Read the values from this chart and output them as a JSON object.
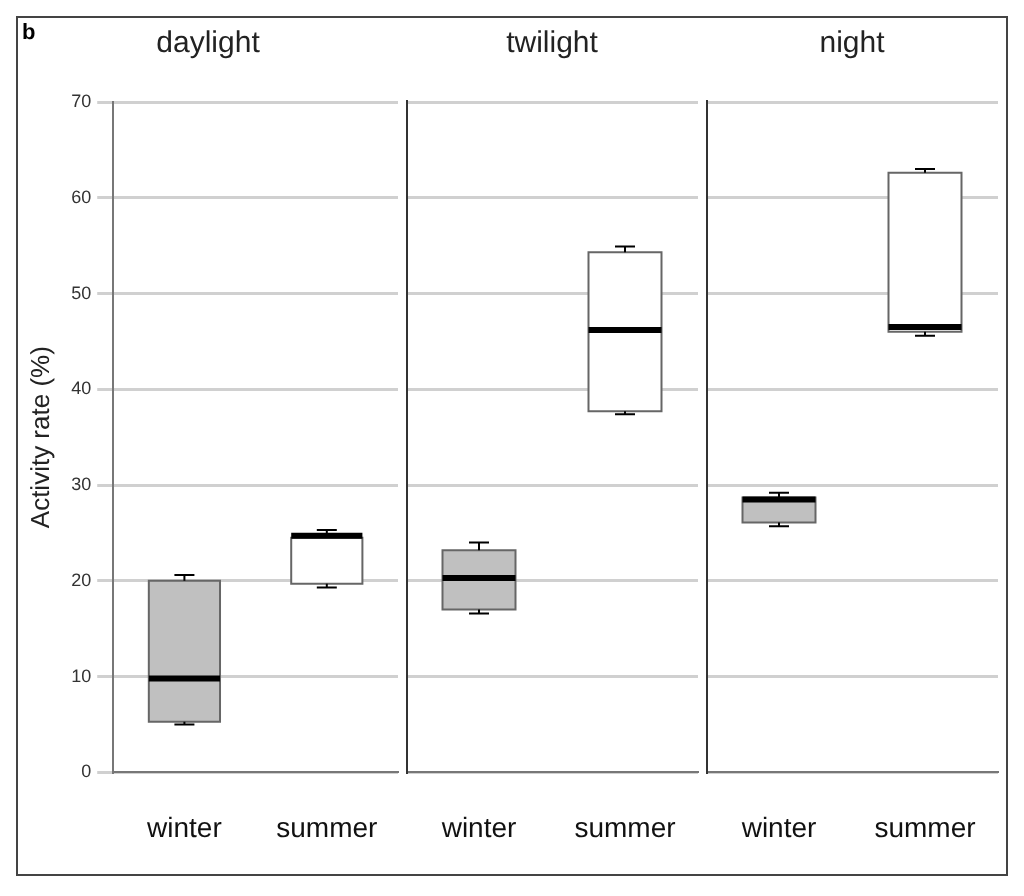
{
  "chart_data": [
    {
      "type": "box",
      "title": "daylight",
      "ylabel": "Activity rate (%)",
      "annotations": [
        "b"
      ],
      "categories": [
        "winter",
        "summer"
      ],
      "colors": [
        "#c0c0c0",
        "#ffffff"
      ],
      "ylim": [
        0,
        70
      ],
      "yticks": [
        0,
        10,
        20,
        30,
        40,
        50,
        60,
        70
      ],
      "grid": "y",
      "boxes": [
        {
          "low": 5,
          "q1": 5.3,
          "median": 9.8,
          "q3": 20,
          "high": 20.6
        },
        {
          "low": 19.3,
          "q1": 19.7,
          "median": 24.7,
          "q3": 24.5,
          "high": 25.3
        }
      ]
    },
    {
      "type": "box",
      "title": "twilight",
      "categories": [
        "winter",
        "summer"
      ],
      "colors": [
        "#c0c0c0",
        "#ffffff"
      ],
      "ylim": [
        0,
        70
      ],
      "yticks": [
        0,
        10,
        20,
        30,
        40,
        50,
        60,
        70
      ],
      "grid": "y",
      "tick_labels": "x",
      "boxes": [
        {
          "low": 16.6,
          "q1": 17,
          "median": 20.3,
          "q3": 23.2,
          "high": 24
        },
        {
          "low": 37.4,
          "q1": 37.7,
          "median": 46.2,
          "q3": 54.3,
          "high": 54.9
        }
      ]
    },
    {
      "type": "box",
      "title": "night",
      "categories": [
        "winter",
        "summer"
      ],
      "colors": [
        "#c0c0c0",
        "#ffffff"
      ],
      "ylim": [
        0,
        70
      ],
      "yticks": [
        0,
        10,
        20,
        30,
        40,
        50,
        60,
        70
      ],
      "grid": "y",
      "tick_labels": "x",
      "boxes": [
        {
          "low": 25.7,
          "q1": 26.1,
          "median": 28.5,
          "q3": 28.7,
          "high": 29.2
        },
        {
          "low": 45.6,
          "q1": 46,
          "median": 46.5,
          "q3": 62.6,
          "high": 63
        }
      ]
    }
  ]
}
